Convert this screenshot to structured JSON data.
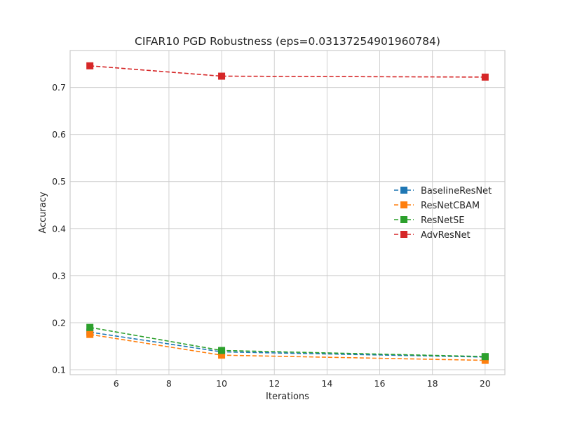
{
  "chart_data": {
    "type": "line",
    "title": "CIFAR10 PGD Robustness (eps=0.03137254901960784)",
    "xlabel": "Iterations",
    "ylabel": "Accuracy",
    "x": [
      5,
      10,
      20
    ],
    "xlim": [
      4.25,
      20.75
    ],
    "ylim": [
      0.0895,
      0.7785
    ],
    "xticks": [
      6,
      8,
      10,
      12,
      14,
      16,
      18,
      20
    ],
    "yticks": [
      0.1,
      0.2,
      0.3,
      0.4,
      0.5,
      0.6,
      0.7
    ],
    "xtick_labels": [
      "6",
      "8",
      "10",
      "12",
      "14",
      "16",
      "18",
      "20"
    ],
    "ytick_labels": [
      "0.1",
      "0.2",
      "0.3",
      "0.4",
      "0.5",
      "0.6",
      "0.7"
    ],
    "grid": true,
    "legend_position": "center-right",
    "series": [
      {
        "name": "BaselineResNet",
        "color": "#1f77b4",
        "values": [
          0.18,
          0.138,
          0.127
        ]
      },
      {
        "name": "ResNetCBAM",
        "color": "#ff7f0e",
        "values": [
          0.175,
          0.131,
          0.12
        ]
      },
      {
        "name": "ResNetSE",
        "color": "#2ca02c",
        "values": [
          0.19,
          0.141,
          0.128
        ]
      },
      {
        "name": "AdvResNet",
        "color": "#d62728",
        "values": [
          0.746,
          0.724,
          0.722
        ]
      }
    ]
  }
}
